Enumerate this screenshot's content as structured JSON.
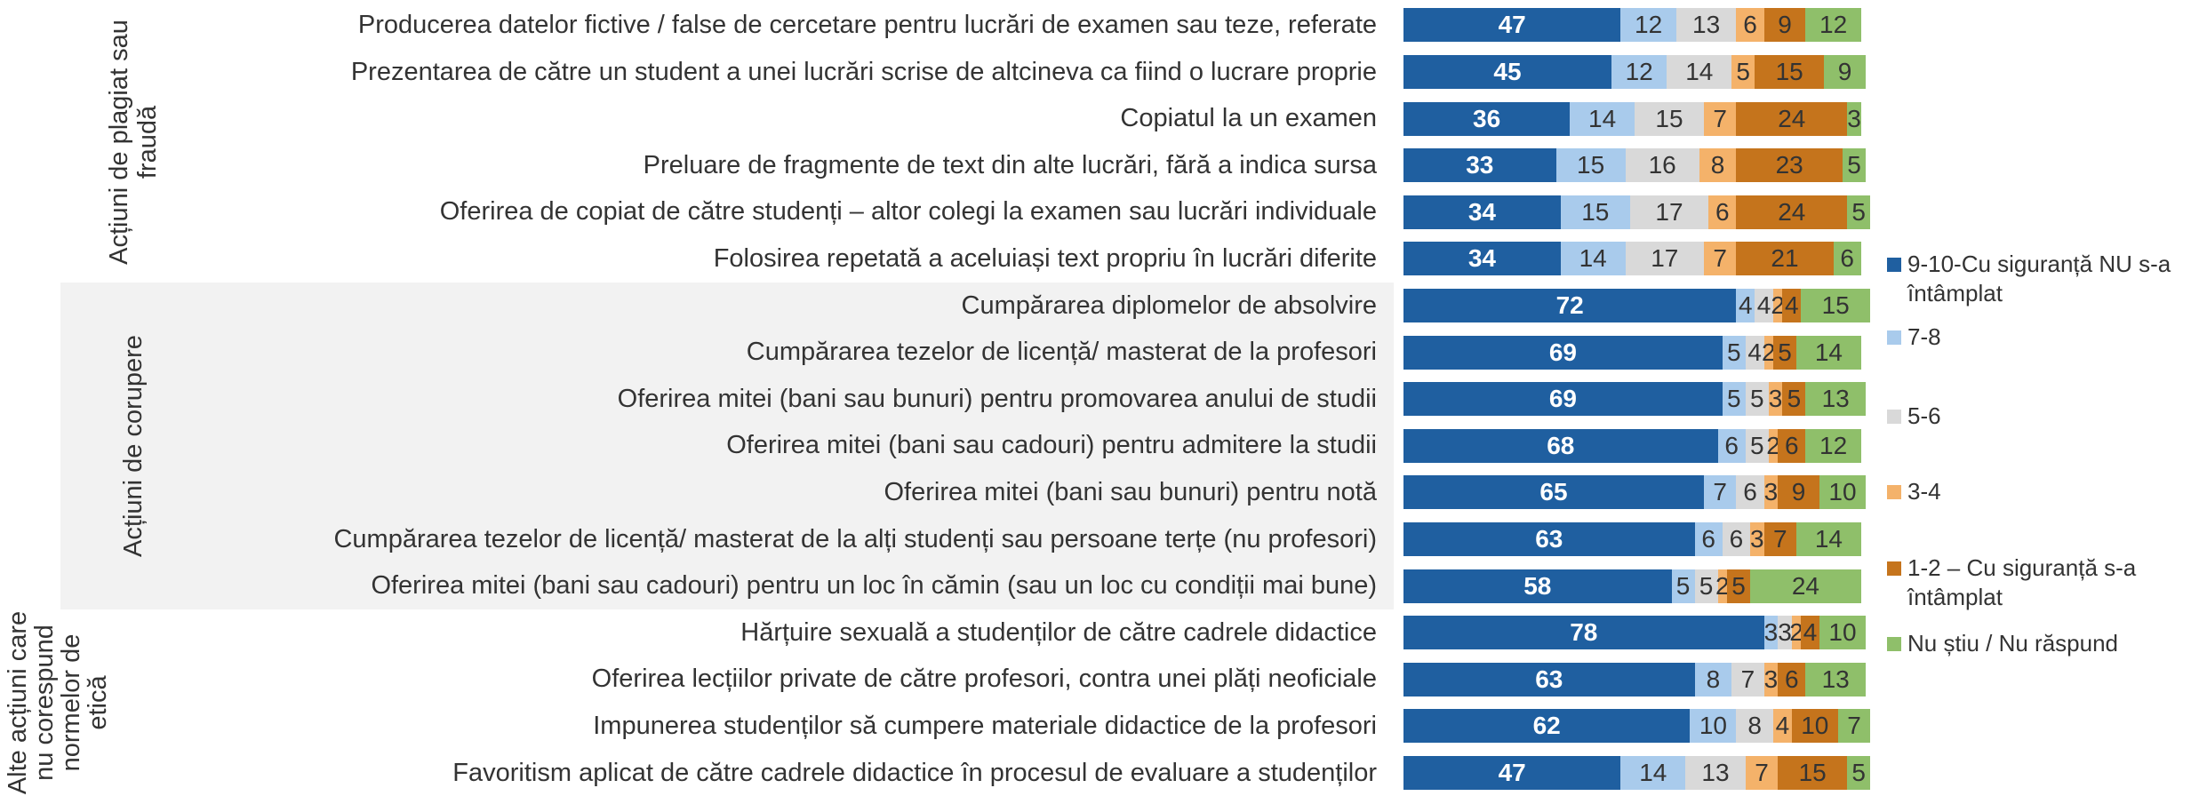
{
  "chart_data": {
    "type": "bar",
    "orientation": "horizontal",
    "stacked": true,
    "groups": [
      {
        "name": "Acțiuni de plagiat sau fraudă",
        "shaded": false,
        "categories": [
          "Producerea datelor fictive / false de cercetare pentru lucrări de examen sau teze, referate",
          "Prezentarea de către un student a unei lucrări scrise de altcineva ca fiind o lucrare proprie",
          "Copiatul la un examen",
          "Preluare de fragmente de text din alte lucrări, fără a indica sursa",
          "Oferirea de copiat de către studenți – altor colegi la examen sau lucrări individuale",
          "Folosirea repetată a aceluiași text propriu în lucrări diferite"
        ]
      },
      {
        "name": "Acțiuni de corupere",
        "shaded": true,
        "categories": [
          "Cumpărarea diplomelor de absolvire",
          "Cumpărarea tezelor de licență/ masterat de la profesori",
          "Oferirea mitei (bani sau bunuri) pentru promovarea anului de studii",
          "Oferirea mitei (bani sau cadouri) pentru admitere la studii",
          "Oferirea mitei (bani sau bunuri) pentru notă",
          "Cumpărarea tezelor de licență/ masterat de la alți studenți sau persoane terțe (nu profesori)",
          "Oferirea mitei (bani sau cadouri) pentru un loc în cămin (sau un loc cu condiții mai bune)"
        ]
      },
      {
        "name": "Alte acțiuni care nu corespund normelor de etică",
        "shaded": false,
        "categories": [
          "Hărțuire sexuală a studenților de către cadrele didactice",
          "Oferirea lecțiilor private de către profesori, contra unei plăți neoficiale",
          "Impunerea studenților să cumpere materiale didactice de la profesori",
          "Favoritism aplicat de către cadrele didactice în procesul de evaluare a studenților"
        ]
      }
    ],
    "series": [
      {
        "name": "9-10-Cu siguranță NU s-a întâmplat",
        "color": "#1f5fa0",
        "text_color": "#ffffff",
        "bold": true,
        "values": [
          47,
          45,
          36,
          33,
          34,
          34,
          72,
          69,
          69,
          68,
          65,
          63,
          58,
          78,
          63,
          62,
          47
        ]
      },
      {
        "name": "7-8",
        "color": "#a9cbec",
        "text_color": "#333333",
        "bold": false,
        "values": [
          12,
          12,
          14,
          15,
          15,
          14,
          4,
          5,
          5,
          6,
          7,
          6,
          5,
          3,
          8,
          10,
          14
        ]
      },
      {
        "name": "5-6",
        "color": "#d9d9d9",
        "text_color": "#333333",
        "bold": false,
        "values": [
          13,
          14,
          15,
          16,
          17,
          17,
          4,
          4,
          5,
          5,
          6,
          6,
          5,
          3,
          7,
          8,
          13
        ]
      },
      {
        "name": "3-4",
        "color": "#f4b26a",
        "text_color": "#333333",
        "bold": false,
        "values": [
          6,
          5,
          7,
          8,
          6,
          7,
          2,
          2,
          3,
          2,
          3,
          3,
          2,
          2,
          3,
          4,
          7
        ]
      },
      {
        "name": "1-2 – Cu siguranță s-a întâmplat",
        "color": "#c5741c",
        "text_color": "#333333",
        "bold": false,
        "values": [
          9,
          15,
          24,
          23,
          24,
          21,
          4,
          5,
          5,
          6,
          9,
          7,
          5,
          4,
          6,
          10,
          15
        ]
      },
      {
        "name": "Nu știu / Nu răspund",
        "color": "#8fbf6a",
        "text_color": "#333333",
        "bold": false,
        "values": [
          12,
          9,
          3,
          5,
          5,
          6,
          15,
          14,
          13,
          12,
          10,
          14,
          24,
          10,
          13,
          7,
          5
        ]
      }
    ]
  }
}
